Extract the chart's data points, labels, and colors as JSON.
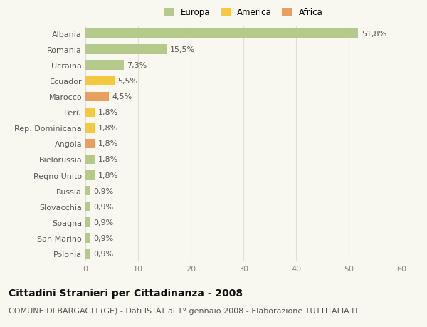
{
  "categories": [
    "Albania",
    "Romania",
    "Ucraina",
    "Ecuador",
    "Marocco",
    "Perù",
    "Rep. Dominicana",
    "Angola",
    "Bielorussia",
    "Regno Unito",
    "Russia",
    "Slovacchia",
    "Spagna",
    "San Marino",
    "Polonia"
  ],
  "values": [
    51.8,
    15.5,
    7.3,
    5.5,
    4.5,
    1.8,
    1.8,
    1.8,
    1.8,
    1.8,
    0.9,
    0.9,
    0.9,
    0.9,
    0.9
  ],
  "labels": [
    "51,8%",
    "15,5%",
    "7,3%",
    "5,5%",
    "4,5%",
    "1,8%",
    "1,8%",
    "1,8%",
    "1,8%",
    "1,8%",
    "0,9%",
    "0,9%",
    "0,9%",
    "0,9%",
    "0,9%"
  ],
  "colors": [
    "#b5c98a",
    "#b5c98a",
    "#b5c98a",
    "#f5c842",
    "#e8a060",
    "#f5c842",
    "#f5c842",
    "#e8a060",
    "#b5c98a",
    "#b5c98a",
    "#b5c98a",
    "#b5c98a",
    "#b5c98a",
    "#b5c98a",
    "#b5c98a"
  ],
  "legend": [
    {
      "label": "Europa",
      "color": "#b5c98a"
    },
    {
      "label": "America",
      "color": "#f5c842"
    },
    {
      "label": "Africa",
      "color": "#e8a060"
    }
  ],
  "title": "Cittadini Stranieri per Cittadinanza - 2008",
  "subtitle": "COMUNE DI BARGAGLI (GE) - Dati ISTAT al 1° gennaio 2008 - Elaborazione TUTTITALIA.IT",
  "xlim": [
    0,
    60
  ],
  "xticks": [
    0,
    10,
    20,
    30,
    40,
    50,
    60
  ],
  "background_color": "#f8f8f0",
  "grid_color": "#e0e0d0",
  "title_fontsize": 10,
  "subtitle_fontsize": 8,
  "tick_fontsize": 8,
  "label_fontsize": 8,
  "legend_fontsize": 8.5
}
